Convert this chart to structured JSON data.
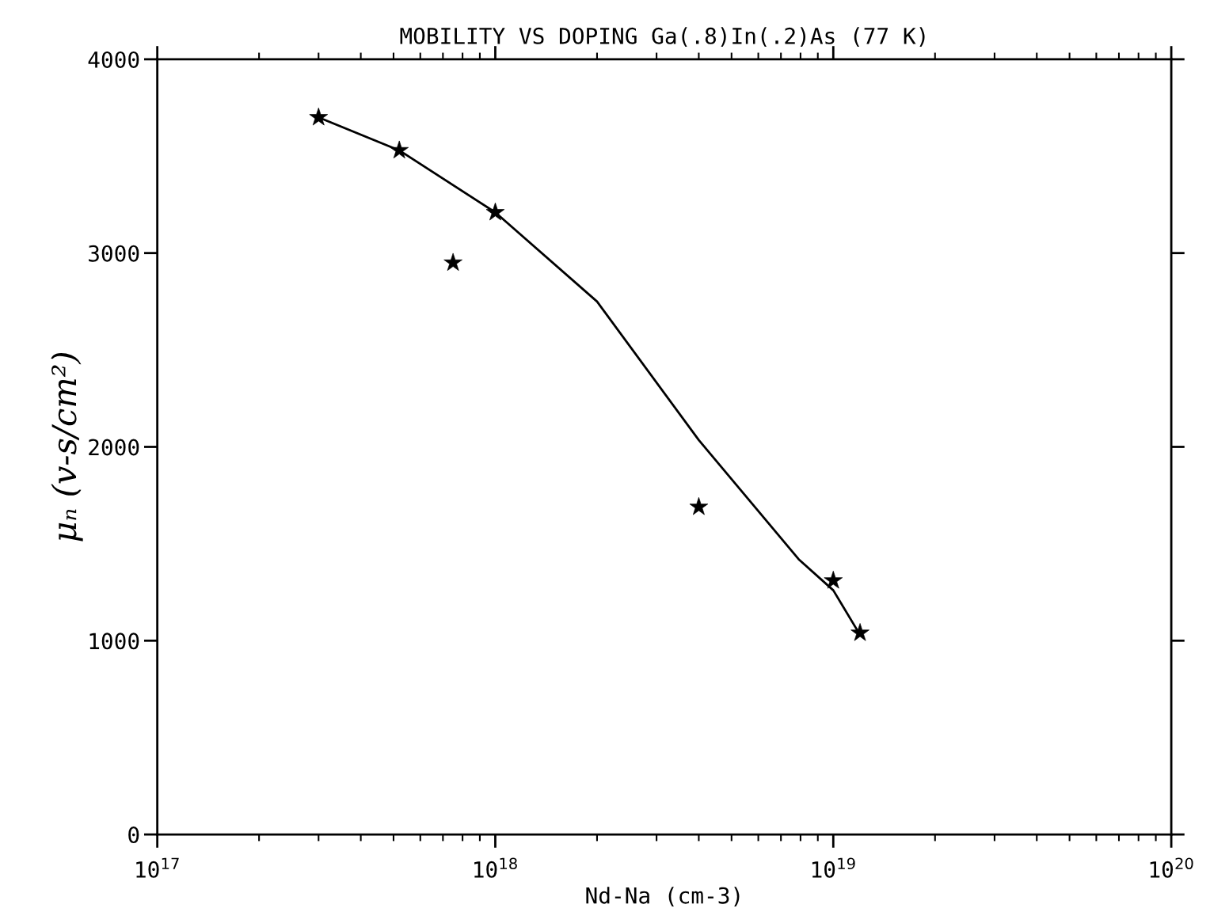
{
  "chart_data": {
    "type": "scatter",
    "title": "MOBILITY VS DOPING Ga(.8)In(.2)As (77 K)",
    "xlabel": "Nd-Na (cm-3)",
    "ylabel": "μₙ (v-s/cm²)",
    "log": "x",
    "xlim": [
      1e+17,
      1e+20
    ],
    "xticks": [
      {
        "value": 1e+17,
        "label": "10$^{17}$"
      },
      {
        "value": 1e+18,
        "label": "10$^{18}$"
      },
      {
        "value": 1e+19,
        "label": "10$^{19}$"
      },
      {
        "value": 1e+20,
        "label": "10$^{20}$"
      }
    ],
    "ylim": [
      0,
      4000
    ],
    "yticks": [
      0,
      1000,
      2000,
      3000,
      4000
    ],
    "grid": false,
    "legend": false,
    "series": [
      {
        "type": "scatter",
        "marker": "star",
        "color": "#000000",
        "x": [
          3e+17,
          5.2e+17,
          7.5e+17,
          1e+18,
          4e+18,
          1e+19,
          1.2e+19
        ],
        "values": [
          3700,
          3530,
          2950,
          3210,
          1690,
          1310,
          1040
        ]
      },
      {
        "type": "line",
        "marker": "none",
        "line_style": "solid",
        "color": "#000000",
        "x": [
          3e+17,
          5.2e+17,
          1e+18,
          2e+18,
          4e+18,
          7.9e+18,
          1e+19,
          1.2e+19
        ],
        "values": [
          3700,
          3530,
          3210,
          2750,
          2035,
          1420,
          1260,
          1030
        ]
      }
    ]
  }
}
